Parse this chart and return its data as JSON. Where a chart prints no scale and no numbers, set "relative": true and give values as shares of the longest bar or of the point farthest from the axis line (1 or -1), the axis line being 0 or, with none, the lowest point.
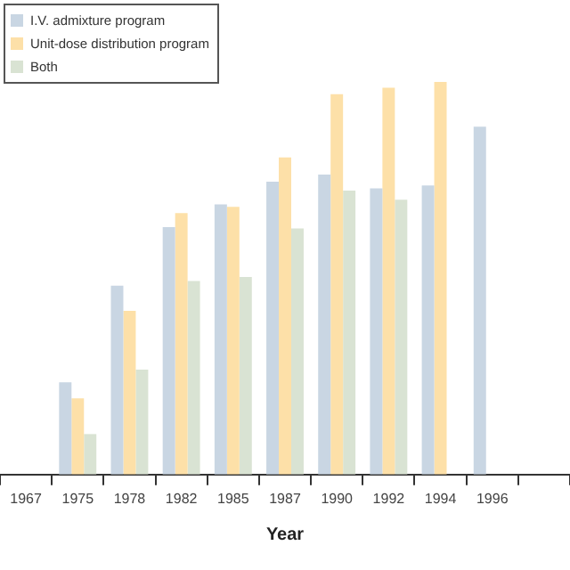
{
  "chart_data": {
    "type": "bar",
    "relative": true,
    "xlabel": "Year",
    "legend": "top left",
    "grid": false,
    "categories": [
      "1967",
      "1975",
      "1978",
      "1982",
      "1985",
      "1987",
      "1990",
      "1992",
      "1994",
      "1996",
      null
    ],
    "series": [
      {
        "name": "I.V. admixture program",
        "color": "#c9d6e3",
        "values": [
          null,
          0.235,
          0.481,
          0.63,
          0.688,
          0.746,
          0.764,
          0.729,
          0.736,
          0.886,
          null
        ]
      },
      {
        "name": "Unit-dose distribution program",
        "color": "#fde0a8",
        "values": [
          null,
          0.194,
          0.417,
          0.666,
          0.682,
          0.808,
          0.969,
          0.985,
          1,
          null,
          null
        ]
      },
      {
        "name": "Both",
        "color": "#d9e3d3",
        "values": [
          null,
          0.103,
          0.267,
          0.493,
          0.503,
          0.627,
          0.723,
          0.7,
          null,
          null,
          null
        ]
      }
    ]
  }
}
